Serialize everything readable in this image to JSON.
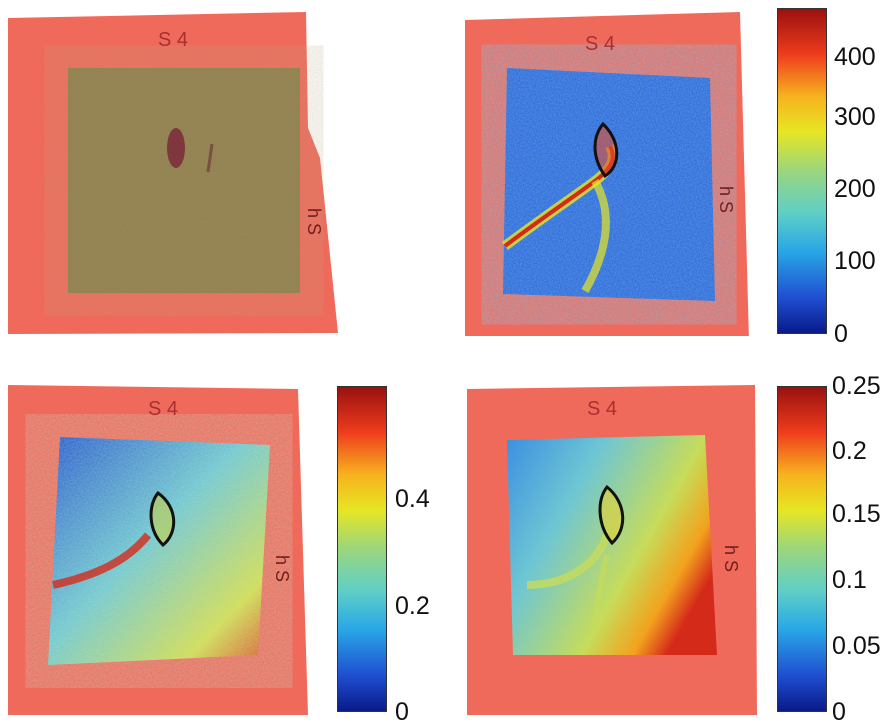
{
  "panels": {
    "top_left": {
      "paper_label": "S 4",
      "side_label": "h S"
    },
    "top_right": {
      "paper_label": "S 4",
      "side_label": "h S"
    },
    "bottom_left": {
      "paper_label": "S 4",
      "side_label": "h S"
    },
    "bottom_right": {
      "paper_label": "S 4",
      "side_label": "h S"
    }
  },
  "colorbars": {
    "top_right": {
      "ticks": [
        "400",
        "300",
        "200",
        "100",
        "0"
      ]
    },
    "bottom_left": {
      "ticks": [
        "0.4",
        "0.2",
        "0"
      ]
    },
    "bottom_right": {
      "ticks": [
        "0.25",
        "0.2",
        "0.15",
        "0.1",
        "0.05",
        "0"
      ]
    }
  },
  "colors": {
    "paper": "#f06a5c",
    "skin": "#8a7a48",
    "map_low": "#1f4fd1",
    "map_mid": "#e6e624",
    "map_high": "#d42a1a",
    "outline": "#111111"
  }
}
